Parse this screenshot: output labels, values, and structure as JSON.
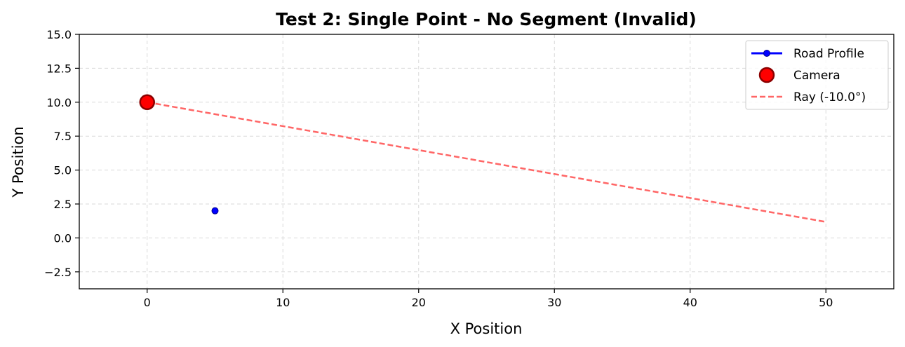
{
  "chart_data": {
    "type": "line",
    "title": "Test 2: Single Point - No Segment (Invalid)",
    "xlabel": "X Position",
    "ylabel": "Y Position",
    "xlim": [
      -5,
      55
    ],
    "ylim": [
      -3.75,
      15
    ],
    "xticks": [
      0,
      10,
      20,
      30,
      40,
      50
    ],
    "yticks": [
      -2.5,
      0.0,
      2.5,
      5.0,
      7.5,
      10.0,
      12.5,
      15.0
    ],
    "xtick_labels": [
      "0",
      "10",
      "20",
      "30",
      "40",
      "50"
    ],
    "ytick_labels": [
      "−2.5",
      "0.0",
      "2.5",
      "5.0",
      "7.5",
      "10.0",
      "12.5",
      "15.0"
    ],
    "grid": true,
    "legend_position": "top-right",
    "series": [
      {
        "name": "Road Profile",
        "kind": "line-marker",
        "color": "#0000ff",
        "x": [
          5
        ],
        "y": [
          2
        ]
      },
      {
        "name": "Camera",
        "kind": "marker",
        "color": "#ff0000",
        "edge_color": "#8b0000",
        "x": [
          0
        ],
        "y": [
          10
        ]
      },
      {
        "name": "Ray (-10.0°)",
        "kind": "dashed-line",
        "color": "#ff6666",
        "x": [
          0,
          50
        ],
        "y": [
          10,
          1.18
        ]
      }
    ]
  }
}
